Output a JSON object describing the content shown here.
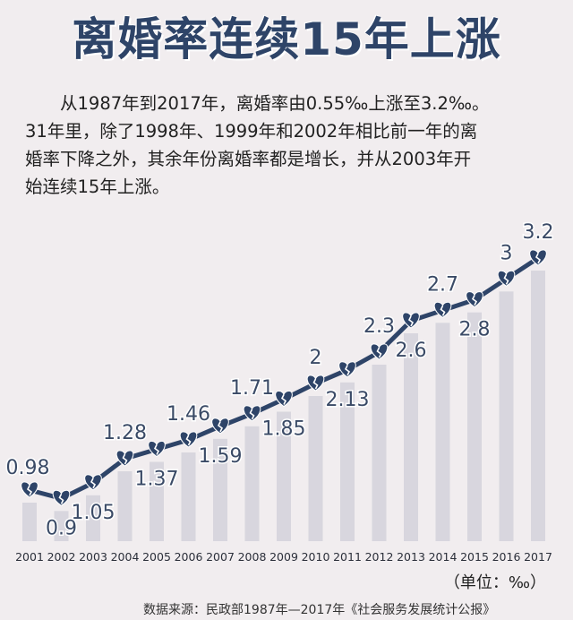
{
  "title": "离婚率连续15年上涨",
  "paragraph": [
    "　　从1987年到2017年，离婚率由0.55‰上涨至3.2‰。",
    "31年里，除了1998年、1999年和2002年相比前一年的离",
    "婚率下降之外，其余年份离婚率都是增长，并从2003年开",
    "始连续15年上涨。"
  ],
  "unit_label": "（单位：‰）",
  "source": "数据来源：民政部1987年—2017年《社会服务发展统计公报》",
  "colors": {
    "title": "#2e4468",
    "line": "#2e4468",
    "bar": "#d8d6de",
    "background": "#f1edef"
  },
  "chart_data": {
    "type": "line",
    "categories": [
      "2001",
      "2002",
      "2003",
      "2004",
      "2005",
      "2006",
      "2007",
      "2008",
      "2009",
      "2010",
      "2011",
      "2012",
      "2013",
      "2014",
      "2015",
      "2016",
      "2017"
    ],
    "series": [
      {
        "values": [
          0.98,
          0.9,
          1.05,
          1.28,
          1.37,
          1.46,
          1.59,
          1.71,
          1.85,
          2,
          2.13,
          2.3,
          2.6,
          2.7,
          2.8,
          3,
          3.2
        ]
      }
    ],
    "labels": [
      "0.98",
      "0.9",
      "1.05",
      "1.28",
      "1.37",
      "1.46",
      "1.59",
      "1.71",
      "1.85",
      "2",
      "2.13",
      "2.3",
      "2.6",
      "2.7",
      "2.8",
      "3",
      "3.2"
    ],
    "ylabel": "‰",
    "background_bars": true,
    "marker": "broken-heart-icon"
  }
}
